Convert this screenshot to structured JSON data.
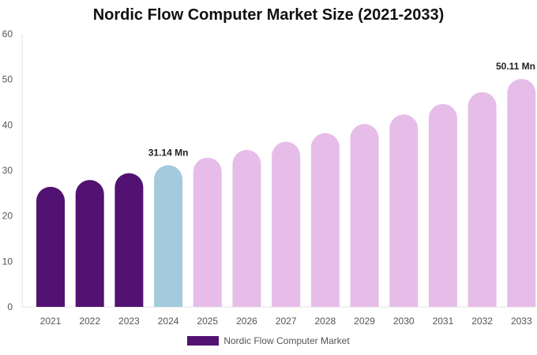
{
  "chart_data": {
    "type": "bar",
    "title": "Nordic Flow Computer Market Size (2021-2033)",
    "categories": [
      "2021",
      "2022",
      "2023",
      "2024",
      "2025",
      "2026",
      "2027",
      "2028",
      "2029",
      "2030",
      "2031",
      "2032",
      "2033"
    ],
    "series": [
      {
        "name": "Nordic Flow Computer Market",
        "values": [
          26.4,
          27.9,
          29.4,
          31.14,
          32.8,
          34.5,
          36.3,
          38.2,
          40.2,
          42.3,
          44.6,
          47.2,
          50.11
        ]
      }
    ],
    "data_labels": {
      "3": "31.14 Mn",
      "12": "50.11 Mn"
    },
    "yticks": [
      "0",
      "10",
      "20",
      "30",
      "40",
      "50",
      "60"
    ],
    "ylim": [
      0,
      60
    ],
    "colors": {
      "historical": "#521272",
      "current": "#a4cade",
      "forecast": "#e6bde9",
      "legend": "#521272"
    },
    "legend_position": "bottom"
  }
}
